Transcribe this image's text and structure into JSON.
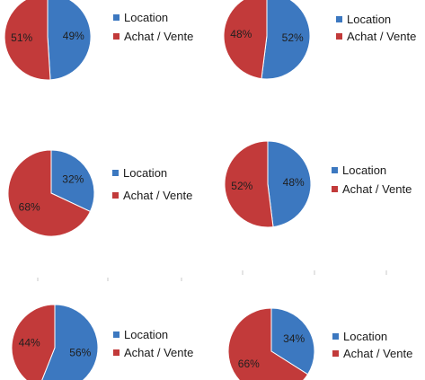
{
  "colors": {
    "location": "#3c78c0",
    "achat_vente": "#c23a3a",
    "edge": "#ffffff"
  },
  "chart_data": [
    {
      "type": "pie",
      "categories": [
        "Location",
        "Achat / Vente"
      ],
      "values": [
        49,
        51
      ],
      "labels": [
        "49%",
        "51%"
      ]
    },
    {
      "type": "pie",
      "categories": [
        "Location",
        "Achat / Vente"
      ],
      "values": [
        52,
        48
      ],
      "labels": [
        "52%",
        "48%"
      ]
    },
    {
      "type": "pie",
      "categories": [
        "Location",
        "Achat / Vente"
      ],
      "values": [
        32,
        68
      ],
      "labels": [
        "32%",
        "68%"
      ]
    },
    {
      "type": "pie",
      "categories": [
        "Location",
        "Achat / Vente"
      ],
      "values": [
        48,
        52
      ],
      "labels": [
        "48%",
        "52%"
      ]
    },
    {
      "type": "pie",
      "categories": [
        "Location",
        "Achat / Vente"
      ],
      "values": [
        56,
        44
      ],
      "labels": [
        "56%",
        "44%"
      ]
    },
    {
      "type": "pie",
      "categories": [
        "Location",
        "Achat / Vente"
      ],
      "values": [
        34,
        66
      ],
      "labels": [
        "34%",
        "66%"
      ]
    }
  ]
}
